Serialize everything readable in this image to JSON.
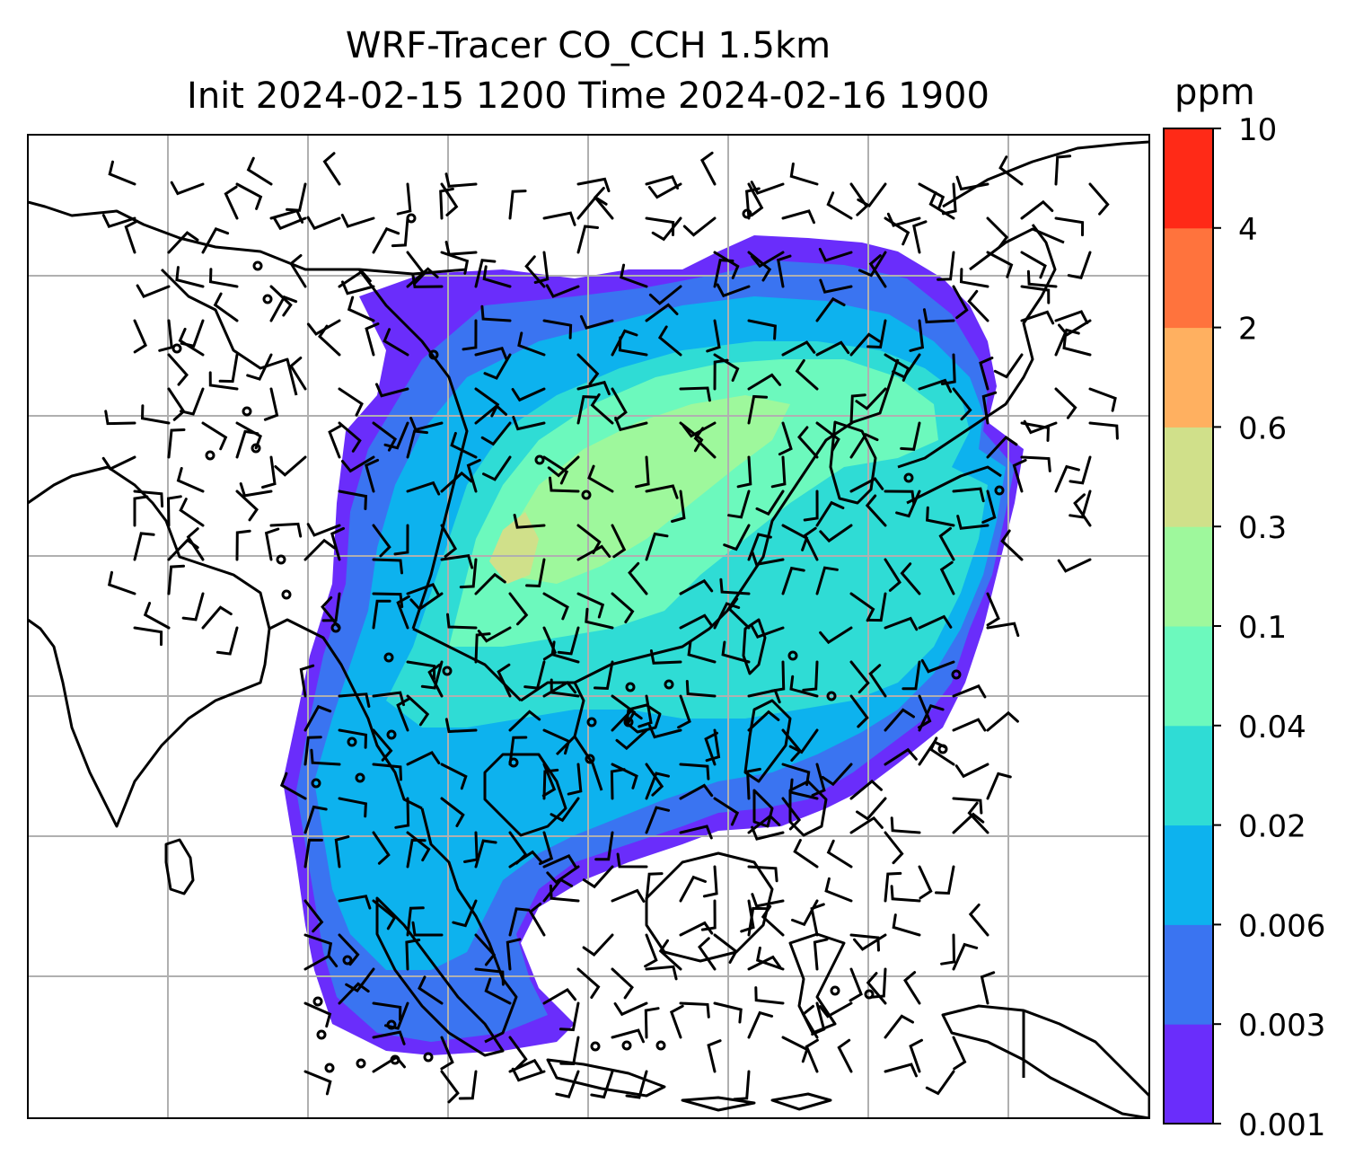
{
  "title": {
    "line1": "WRF-Tracer CO_CCH 1.5km",
    "line2": "Init 2024-02-15 1200 Time 2024-02-16 1900"
  },
  "colorbar": {
    "unit": "ppm",
    "levels": [
      "0.001",
      "0.003",
      "0.006",
      "0.02",
      "0.04",
      "0.1",
      "0.3",
      "0.6",
      "2",
      "4",
      "10"
    ],
    "colors": [
      "#6a2dfb",
      "#3a74f1",
      "#0db2ee",
      "#2fdcd5",
      "#6cf9bd",
      "#9ef89c",
      "#d0e08a",
      "#ffb060",
      "#ff733d",
      "#ff2a17"
    ]
  },
  "map": {
    "features": [
      "coastlines",
      "country-borders",
      "lat-lon-grid",
      "wind-barbs",
      "co-tracer-concentration"
    ]
  }
}
